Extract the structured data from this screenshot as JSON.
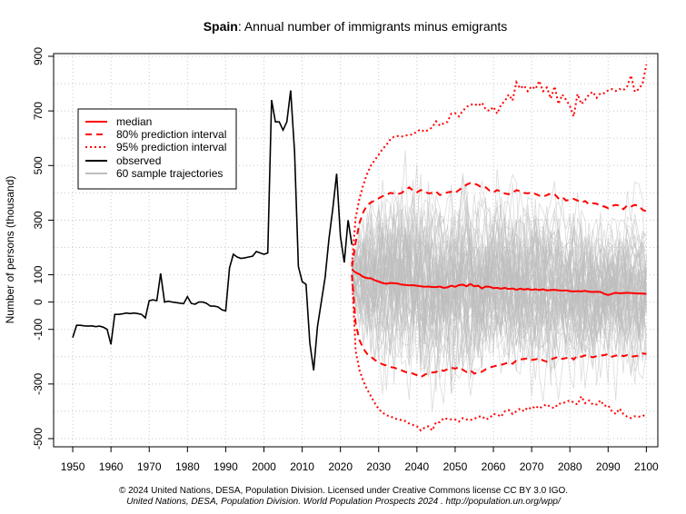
{
  "chart_data": {
    "type": "line",
    "title_bold": "Spain",
    "title_rest": ": Annual number of immigrants minus emigrants",
    "ylabel": "Number of persons (thousand)",
    "xlabel": "",
    "xlim": [
      1945,
      2103
    ],
    "ylim": [
      -530,
      910
    ],
    "x_ticks": [
      1950,
      1960,
      1970,
      1980,
      1990,
      2000,
      2010,
      2020,
      2030,
      2040,
      2050,
      2060,
      2070,
      2080,
      2090,
      2100
    ],
    "y_ticks": [
      -500,
      -300,
      -100,
      0,
      100,
      300,
      500,
      700,
      900
    ],
    "y_tick_labels": [
      "-500",
      "-300",
      "-100",
      "0",
      "100",
      "300",
      "500",
      "700",
      "900"
    ],
    "x_grid": [
      1950,
      1960,
      1970,
      1980,
      1990,
      2000,
      2010,
      2020,
      2030,
      2040,
      2050,
      2060,
      2070,
      2080,
      2090,
      2100
    ],
    "y_grid": [
      -500,
      -400,
      -300,
      -200,
      -100,
      0,
      100,
      200,
      300,
      400,
      500,
      600,
      700,
      800,
      900
    ],
    "grid": true,
    "legend_position": "top-left",
    "legend": [
      {
        "label": "median",
        "color": "#ff0000",
        "style": "solid"
      },
      {
        "label": "80% prediction interval",
        "color": "#ff0000",
        "style": "dashed"
      },
      {
        "label": "95% prediction interval",
        "color": "#ff0000",
        "style": "dotted"
      },
      {
        "label": "observed",
        "color": "#000000",
        "style": "solid"
      },
      {
        "label": "60 sample trajectories",
        "color": "#bebebe",
        "style": "solid"
      }
    ],
    "colors": {
      "median": "#ff0000",
      "observed": "#000000",
      "trajectory": "#bebebe",
      "grid": "#c8c8c8"
    },
    "observed": {
      "x": [
        1950,
        1951,
        1952,
        1953,
        1954,
        1955,
        1956,
        1957,
        1958,
        1959,
        1960,
        1961,
        1962,
        1963,
        1964,
        1965,
        1966,
        1967,
        1968,
        1969,
        1970,
        1971,
        1972,
        1973,
        1974,
        1975,
        1976,
        1977,
        1978,
        1979,
        1980,
        1981,
        1982,
        1983,
        1984,
        1985,
        1986,
        1987,
        1988,
        1989,
        1990,
        1991,
        1992,
        1993,
        1994,
        1995,
        1996,
        1997,
        1998,
        1999,
        2000,
        2001,
        2002,
        2003,
        2004,
        2005,
        2006,
        2007,
        2008,
        2009,
        2010,
        2011,
        2012,
        2013,
        2014,
        2015,
        2016,
        2017,
        2018,
        2019,
        2020,
        2021,
        2022,
        2023
      ],
      "y": [
        -130,
        -85,
        -85,
        -87,
        -88,
        -87,
        -90,
        -88,
        -92,
        -100,
        -155,
        -45,
        -45,
        -43,
        -40,
        -42,
        -40,
        -42,
        -45,
        -58,
        5,
        8,
        5,
        105,
        0,
        3,
        0,
        -2,
        -4,
        -6,
        20,
        -5,
        -8,
        0,
        0,
        -5,
        -15,
        -15,
        -18,
        -28,
        -32,
        125,
        175,
        165,
        160,
        162,
        165,
        168,
        185,
        180,
        175,
        180,
        740,
        660,
        660,
        630,
        660,
        775,
        550,
        130,
        75,
        65,
        -150,
        -250,
        -90,
        0,
        90,
        230,
        340,
        470,
        240,
        145,
        300,
        210
      ]
    },
    "projection_x": [
      2023,
      2024,
      2025,
      2026,
      2027,
      2028,
      2029,
      2030,
      2031,
      2032,
      2033,
      2034,
      2035,
      2036,
      2037,
      2038,
      2039,
      2040,
      2041,
      2042,
      2043,
      2044,
      2045,
      2046,
      2047,
      2048,
      2049,
      2050,
      2051,
      2052,
      2053,
      2054,
      2055,
      2056,
      2057,
      2058,
      2059,
      2060,
      2061,
      2062,
      2063,
      2064,
      2065,
      2066,
      2067,
      2068,
      2069,
      2070,
      2071,
      2072,
      2073,
      2074,
      2075,
      2076,
      2077,
      2078,
      2079,
      2080,
      2081,
      2082,
      2083,
      2084,
      2085,
      2086,
      2087,
      2088,
      2089,
      2090,
      2091,
      2092,
      2093,
      2094,
      2095,
      2096,
      2097,
      2098,
      2099,
      2100
    ],
    "median": [
      120,
      108,
      102,
      92,
      88,
      87,
      80,
      75,
      70,
      67,
      70,
      69,
      68,
      64,
      63,
      61,
      62,
      60,
      58,
      56,
      57,
      55,
      55,
      57,
      52,
      54,
      60,
      56,
      62,
      64,
      58,
      66,
      58,
      60,
      50,
      57,
      56,
      51,
      52,
      49,
      52,
      48,
      50,
      45,
      49,
      46,
      48,
      45,
      47,
      44,
      47,
      43,
      44,
      45,
      43,
      42,
      43,
      40,
      39,
      40,
      39,
      41,
      38,
      37,
      38,
      37,
      30,
      26,
      30,
      34,
      32,
      33,
      34,
      33,
      32,
      31,
      31,
      30
    ],
    "pi80_upper": [
      130,
      220,
      290,
      330,
      355,
      365,
      372,
      380,
      388,
      392,
      400,
      398,
      395,
      400,
      410,
      420,
      408,
      402,
      410,
      406,
      398,
      400,
      405,
      392,
      396,
      402,
      404,
      400,
      410,
      420,
      430,
      436,
      434,
      428,
      418,
      420,
      408,
      402,
      410,
      404,
      398,
      395,
      400,
      410,
      406,
      400,
      398,
      402,
      396,
      390,
      386,
      392,
      398,
      395,
      380,
      385,
      372,
      374,
      378,
      372,
      365,
      370,
      358,
      362,
      360,
      352,
      350,
      344,
      352,
      356,
      353,
      340,
      354,
      350,
      356,
      352,
      338,
      332
    ],
    "pi80_lower": [
      100,
      -80,
      -140,
      -170,
      -190,
      -200,
      -212,
      -220,
      -228,
      -232,
      -238,
      -240,
      -245,
      -250,
      -256,
      -258,
      -262,
      -268,
      -275,
      -266,
      -260,
      -258,
      -256,
      -248,
      -252,
      -246,
      -240,
      -244,
      -238,
      -248,
      -256,
      -250,
      -262,
      -258,
      -255,
      -246,
      -240,
      -236,
      -232,
      -230,
      -226,
      -220,
      -226,
      -214,
      -210,
      -208,
      -206,
      -212,
      -210,
      -205,
      -214,
      -218,
      -210,
      -205,
      -200,
      -208,
      -205,
      -200,
      -210,
      -196,
      -200,
      -195,
      -198,
      -202,
      -198,
      -196,
      -194,
      -190,
      -200,
      -196,
      -193,
      -198,
      -194,
      -200,
      -198,
      -196,
      -188,
      -190
    ],
    "pi95_upper": [
      140,
      310,
      380,
      430,
      470,
      500,
      520,
      540,
      560,
      575,
      595,
      605,
      608,
      606,
      610,
      612,
      614,
      625,
      632,
      624,
      630,
      640,
      662,
      646,
      655,
      660,
      690,
      692,
      680,
      700,
      715,
      722,
      726,
      718,
      730,
      705,
      700,
      715,
      690,
      722,
      736,
      760,
      738,
      805,
      782,
      793,
      772,
      790,
      780,
      810,
      772,
      786,
      745,
      790,
      725,
      760,
      741,
      718,
      680,
      762,
      725,
      740,
      760,
      770,
      748,
      765,
      765,
      775,
      780,
      773,
      780,
      776,
      790,
      830,
      770,
      780,
      800,
      870
    ],
    "pi95_lower": [
      100,
      -180,
      -250,
      -290,
      -320,
      -345,
      -370,
      -392,
      -405,
      -415,
      -418,
      -425,
      -430,
      -432,
      -436,
      -445,
      -450,
      -455,
      -470,
      -460,
      -455,
      -470,
      -440,
      -440,
      -425,
      -428,
      -430,
      -430,
      -438,
      -425,
      -430,
      -432,
      -428,
      -420,
      -418,
      -430,
      -425,
      -410,
      -412,
      -420,
      -400,
      -395,
      -410,
      -400,
      -390,
      -400,
      -385,
      -392,
      -380,
      -390,
      -380,
      -375,
      -385,
      -388,
      -372,
      -372,
      -365,
      -360,
      -368,
      -375,
      -345,
      -370,
      -360,
      -375,
      -375,
      -360,
      -380,
      -378,
      -400,
      -410,
      -390,
      -410,
      -420,
      -425,
      -418,
      -420,
      -418,
      -410
    ]
  },
  "footer": {
    "line1": "© 2024 United Nations, DESA, Population Division. Licensed under Creative Commons license CC BY 3.0 IGO.",
    "line2": "United Nations, DESA, Population Division. World Population Prospects 2024 . http://population.un.org/wpp/"
  }
}
